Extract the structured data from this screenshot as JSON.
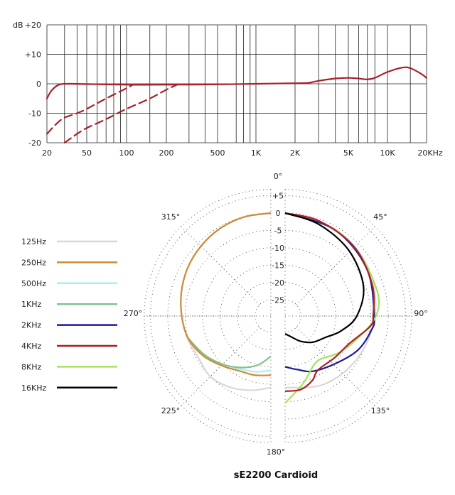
{
  "chart_data": [
    {
      "type": "line",
      "ylabel": "dB",
      "xscale": "log",
      "xlim": [
        20,
        20000
      ],
      "ylim": [
        -20,
        20
      ],
      "grid": true,
      "x_tick_labels": [
        "20",
        "50",
        "100",
        "200",
        "500",
        "1K",
        "2K",
        "5K",
        "10K",
        "20KHz"
      ],
      "x_tick_values": [
        20,
        50,
        100,
        200,
        500,
        1000,
        2000,
        5000,
        10000,
        20000
      ],
      "y_tick_labels": [
        "+20",
        "+10",
        "0",
        "-10",
        "-20"
      ],
      "y_tick_values": [
        20,
        10,
        0,
        -10,
        -20
      ],
      "line_color": "#a8202a",
      "series": [
        {
          "style": "solid",
          "x": [
            20,
            22,
            25,
            28,
            35,
            100,
            200,
            500,
            1000,
            2000,
            2500,
            3000,
            4000,
            5000,
            6000,
            7000,
            8000,
            10000,
            13000,
            15000,
            18000,
            20000
          ],
          "y": [
            -5,
            -2.5,
            -0.7,
            -0.1,
            0,
            -0.3,
            -0.3,
            -0.2,
            0,
            0.2,
            0.3,
            1,
            1.8,
            2,
            1.8,
            1.5,
            2,
            4,
            5.5,
            5.3,
            3.5,
            2
          ]
        },
        {
          "style": "dashed",
          "x": [
            20,
            25,
            30,
            40,
            50,
            70,
            100,
            110
          ],
          "y": [
            -17,
            -13.5,
            -11.5,
            -10,
            -8.5,
            -5,
            -1.5,
            -0.5
          ]
        },
        {
          "style": "dashed",
          "x": [
            30,
            40,
            50,
            70,
            100,
            150,
            200,
            240
          ],
          "y": [
            -20,
            -17,
            -15,
            -12,
            -8.5,
            -5,
            -2,
            -0.4
          ]
        }
      ]
    },
    {
      "type": "polar",
      "title": "sE2200  Cardioid",
      "angle_labels": [
        "0°",
        "45°",
        "90°",
        "135°",
        "180°",
        "225°",
        "270°",
        "315°"
      ],
      "radial_labels": [
        "+5",
        "0",
        "-5",
        "-10",
        "-15",
        "-20",
        "-25"
      ],
      "radial_values": [
        5,
        0,
        -5,
        -10,
        -15,
        -20,
        -25
      ],
      "legend_placement": "left",
      "series": [
        {
          "name": "125Hz",
          "color": "#d8d8d8",
          "angles": [
            0,
            30,
            60,
            90,
            120,
            150,
            180,
            195,
            210,
            225,
            240,
            255,
            270,
            285,
            300,
            315,
            330,
            345,
            360
          ],
          "db": [
            0,
            -0.8,
            -2,
            -3.8,
            -5.5,
            -7,
            -9,
            -7.5,
            -6,
            -5,
            -5.6,
            -4.8,
            -4,
            -3,
            -2,
            -1.2,
            -0.5,
            -0.1,
            0
          ]
        },
        {
          "name": "250Hz",
          "color": "#d08a35",
          "angles": [
            180,
            195,
            210,
            225,
            240,
            255,
            270,
            285,
            300,
            315,
            330,
            345,
            360
          ],
          "db": [
            -12.6,
            -12,
            -11.4,
            -9.5,
            -7,
            -5,
            -4,
            -3,
            -2,
            -1.2,
            -0.5,
            -0.1,
            0
          ]
        },
        {
          "name": "500Hz",
          "color": "#a9eef6",
          "angles": [
            180,
            195,
            210,
            225,
            240,
            255
          ],
          "db": [
            -14,
            -13,
            -12,
            -10,
            -7.2,
            -5
          ]
        },
        {
          "name": "1KHz",
          "color": "#7fc48c",
          "angles": [
            180,
            195,
            210,
            225,
            240,
            255
          ],
          "db": [
            -18,
            -15,
            -12.5,
            -10,
            -7.5,
            -5
          ]
        },
        {
          "name": "2KHz",
          "color": "#1c1c96",
          "angles": [
            0,
            30,
            60,
            90,
            100,
            115,
            132,
            153,
            167,
            180
          ],
          "db": [
            0,
            -1,
            -2.5,
            -4,
            -4.6,
            -6.5,
            -9.5,
            -11.8,
            -13.8,
            -15
          ]
        },
        {
          "name": "4KHz",
          "color": "#b01e22",
          "angles": [
            0,
            20,
            45,
            70,
            90,
            97,
            113,
            130,
            149,
            157,
            168,
            180
          ],
          "db": [
            0,
            -0.6,
            -1.5,
            -3,
            -4.3,
            -5,
            -9.5,
            -11,
            -11.4,
            -9.5,
            -8,
            -8
          ]
        },
        {
          "name": "8KHz",
          "color": "#a6e35a",
          "angles": [
            0,
            20,
            45,
            74,
            90,
            108,
            125,
            144,
            160,
            168,
            180
          ],
          "db": [
            0,
            -0.6,
            -1.5,
            -2.2,
            -3.5,
            -8,
            -11,
            -13.7,
            -11,
            -8.7,
            -4.6
          ]
        },
        {
          "name": "16KHz",
          "color": "#000000",
          "angles": [
            0,
            20,
            44,
            69,
            90,
            105,
            118,
            133,
            148,
            165,
            180
          ],
          "db": [
            0,
            -1.5,
            -3.3,
            -5.5,
            -9,
            -13,
            -16.5,
            -18.6,
            -21,
            -23.5,
            -24.5
          ]
        }
      ]
    }
  ]
}
